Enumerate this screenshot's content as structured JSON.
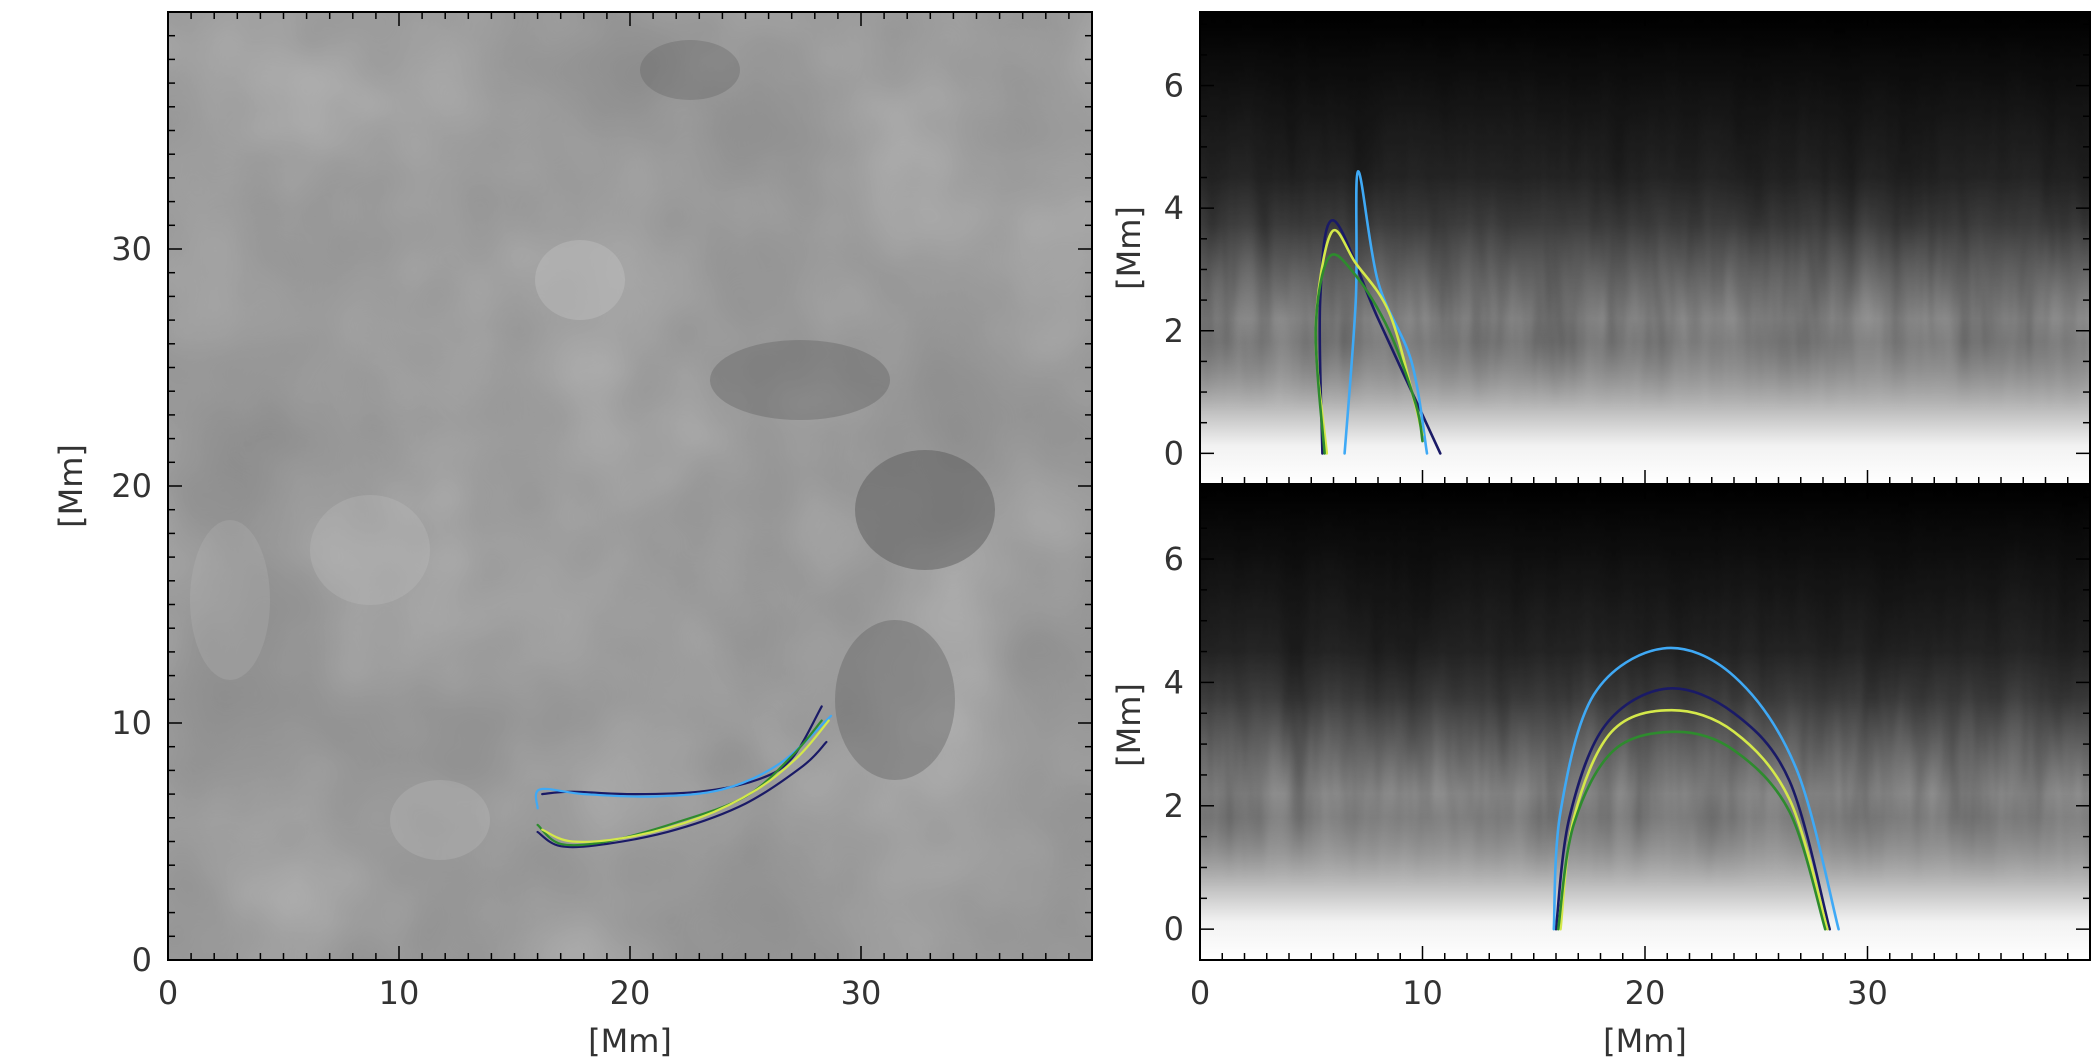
{
  "chart_data": [
    {
      "type": "image",
      "panel": "left",
      "xlabel": "[Mm]",
      "ylabel": "[Mm]",
      "xlim": [
        0,
        40
      ],
      "ylim": [
        0,
        40
      ],
      "xticks": [
        0,
        10,
        20,
        30
      ],
      "yticks": [
        0,
        10,
        20,
        30
      ],
      "background": "grayscale magnetogram",
      "series": [
        {
          "color": "#1a1a66",
          "points": [
            [
              16.2,
              7.0
            ],
            [
              17.5,
              7.1
            ],
            [
              20,
              7.0
            ],
            [
              23,
              7.1
            ],
            [
              25.5,
              7.6
            ],
            [
              27,
              8.5
            ],
            [
              28.3,
              10.7
            ]
          ]
        },
        {
          "color": "#3fa9f5",
          "points": [
            [
              16.0,
              6.4
            ],
            [
              16.1,
              7.2
            ],
            [
              18,
              7.0
            ],
            [
              21,
              6.9
            ],
            [
              24,
              7.2
            ],
            [
              26.5,
              8.3
            ],
            [
              28.7,
              10.3
            ]
          ]
        },
        {
          "color": "#1a1a66",
          "points": [
            [
              16.0,
              5.4
            ],
            [
              17,
              4.8
            ],
            [
              19,
              4.9
            ],
            [
              22,
              5.5
            ],
            [
              25,
              6.6
            ],
            [
              27.5,
              8.2
            ],
            [
              28.5,
              9.2
            ]
          ]
        },
        {
          "color": "#2e8b2e",
          "points": [
            [
              16.0,
              5.7
            ],
            [
              17,
              4.9
            ],
            [
              19,
              5.0
            ],
            [
              22,
              5.8
            ],
            [
              25,
              6.9
            ],
            [
              27,
              8.6
            ],
            [
              28.3,
              10.1
            ]
          ]
        },
        {
          "color": "#d4e84a",
          "points": [
            [
              16.2,
              5.5
            ],
            [
              17.5,
              5.0
            ],
            [
              20,
              5.2
            ],
            [
              23,
              6.0
            ],
            [
              25.5,
              7.2
            ],
            [
              27.3,
              8.6
            ],
            [
              28.6,
              10.1
            ]
          ]
        }
      ]
    },
    {
      "type": "image",
      "panel": "right-top",
      "ylabel": "[Mm]",
      "xlim": [
        0,
        40
      ],
      "ylim": [
        -0.5,
        7.2
      ],
      "yticks": [
        0,
        2,
        4,
        6
      ],
      "background": "side view, grayscale",
      "series": [
        {
          "color": "#1a1a66",
          "points": [
            [
              5.5,
              0
            ],
            [
              5.4,
              2.5
            ],
            [
              6.0,
              3.8
            ],
            [
              8,
              2.2
            ],
            [
              10.8,
              0
            ]
          ]
        },
        {
          "color": "#3fa9f5",
          "points": [
            [
              6.5,
              0
            ],
            [
              7.0,
              2.5
            ],
            [
              7.1,
              4.6
            ],
            [
              8.0,
              2.8
            ],
            [
              9.5,
              1.5
            ],
            [
              10.2,
              0
            ]
          ]
        },
        {
          "color": "#d4e84a",
          "points": [
            [
              5.7,
              0
            ],
            [
              5.2,
              2.0
            ],
            [
              5.9,
              3.6
            ],
            [
              7,
              3.1
            ],
            [
              8.5,
              2.3
            ],
            [
              9.6,
              0.9
            ],
            [
              10,
              0.3
            ]
          ]
        },
        {
          "color": "#2e8b2e",
          "points": [
            [
              5.6,
              0
            ],
            [
              5.2,
              2.0
            ],
            [
              5.8,
              3.2
            ],
            [
              7,
              2.9
            ],
            [
              8.5,
              2.0
            ],
            [
              9.7,
              0.8
            ],
            [
              10,
              0.2
            ]
          ]
        }
      ]
    },
    {
      "type": "image",
      "panel": "right-bottom",
      "xlabel": "[Mm]",
      "ylabel": "[Mm]",
      "xlim": [
        0,
        40
      ],
      "ylim": [
        -0.5,
        7.2
      ],
      "xticks": [
        0,
        10,
        20,
        30
      ],
      "yticks": [
        0,
        2,
        4,
        6
      ],
      "background": "side view, grayscale",
      "series": [
        {
          "color": "#1a1a66",
          "points": [
            [
              16.0,
              0
            ],
            [
              16.6,
              1.8
            ],
            [
              18.2,
              3.3
            ],
            [
              21,
              3.9
            ],
            [
              24,
              3.5
            ],
            [
              26.5,
              2.4
            ],
            [
              28.3,
              0
            ]
          ]
        },
        {
          "color": "#3fa9f5",
          "points": [
            [
              15.9,
              0
            ],
            [
              16.2,
              1.9
            ],
            [
              17.7,
              3.8
            ],
            [
              20.8,
              4.55
            ],
            [
              24,
              4.1
            ],
            [
              26.8,
              2.6
            ],
            [
              28.7,
              0
            ]
          ]
        },
        {
          "color": "#d4e84a",
          "points": [
            [
              16.2,
              0
            ],
            [
              16.8,
              1.8
            ],
            [
              18.5,
              3.2
            ],
            [
              21.2,
              3.55
            ],
            [
              24,
              3.2
            ],
            [
              26.5,
              2.1
            ],
            [
              28.2,
              0
            ]
          ]
        },
        {
          "color": "#2e8b2e",
          "points": [
            [
              16.1,
              0
            ],
            [
              16.8,
              1.7
            ],
            [
              18.6,
              2.9
            ],
            [
              21.4,
              3.2
            ],
            [
              24,
              2.9
            ],
            [
              26.5,
              1.9
            ],
            [
              28.1,
              0
            ]
          ]
        }
      ]
    }
  ]
}
